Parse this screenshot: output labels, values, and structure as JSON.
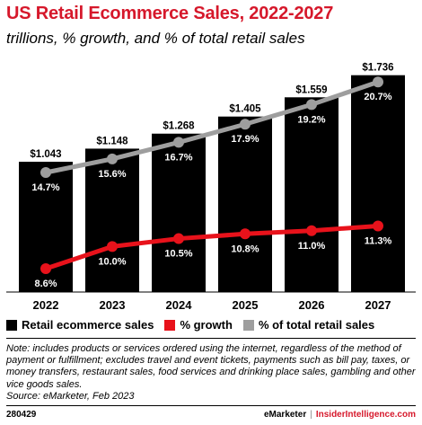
{
  "header": {
    "title": "US Retail Ecommerce Sales, 2022-2027",
    "subtitle": "trillions, % growth, and % of total retail sales"
  },
  "legend": {
    "items": [
      {
        "label": "Retail ecommerce sales",
        "color": "#000000"
      },
      {
        "label": "% growth",
        "color": "#e8121b"
      },
      {
        "label": "% of total retail sales",
        "color": "#9e9e9e"
      }
    ]
  },
  "note": {
    "text": "Note: includes products or services ordered using the internet, regardless of the method of payment or fulfillment; excludes travel and event tickets, payments such as bill pay, taxes, or money transfers, restaurant sales, food services and drinking place sales, gambling and other vice goods sales.",
    "source": "Source: eMarketer, Feb 2023"
  },
  "footer": {
    "id": "280429",
    "brand": "eMarketer",
    "separator": "|",
    "site": "InsiderIntelligence.com"
  },
  "chart_data": {
    "type": "bar",
    "categories": [
      "2022",
      "2023",
      "2024",
      "2025",
      "2026",
      "2027"
    ],
    "series": [
      {
        "name": "Retail ecommerce sales",
        "type": "bar",
        "color": "#000000",
        "values": [
          1.043,
          1.148,
          1.268,
          1.405,
          1.559,
          1.736
        ],
        "labels": [
          "$1.043",
          "$1.148",
          "$1.268",
          "$1.405",
          "$1.559",
          "$1.736"
        ]
      },
      {
        "name": "% growth",
        "type": "line",
        "color": "#e8121b",
        "values": [
          8.6,
          10.0,
          10.5,
          10.8,
          11.0,
          11.3
        ],
        "labels": [
          "8.6%",
          "10.0%",
          "10.5%",
          "10.8%",
          "11.0%",
          "11.3%"
        ]
      },
      {
        "name": "% of total retail sales",
        "type": "line",
        "color": "#9e9e9e",
        "values": [
          14.7,
          15.6,
          16.7,
          17.9,
          19.2,
          20.7
        ],
        "labels": [
          "14.7%",
          "15.6%",
          "16.7%",
          "17.9%",
          "19.2%",
          "20.7%"
        ]
      }
    ],
    "ylim": [
      0,
      1.8
    ],
    "grid": false,
    "legend_position": "bottom"
  }
}
